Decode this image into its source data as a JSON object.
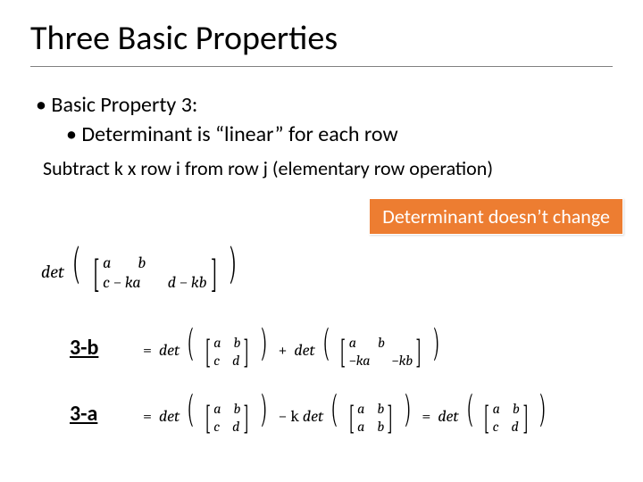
{
  "title": "Three Basic Properties",
  "bullets": {
    "level1": "Basic Property 3:",
    "level2": "Determinant is “linear” for each row"
  },
  "subtext": "Subtract k x row i from row j (elementary row operation)",
  "callout": {
    "text": "Determinant doesn’t change",
    "background_color": "#ed7d31",
    "text_color": "#ffffff"
  },
  "labels": {
    "step_b": "3-b",
    "step_a": "3-a"
  },
  "math": {
    "det_word": "det",
    "eq1": {
      "m": [
        [
          "a",
          "b"
        ],
        [
          "c − ka",
          "d − kb"
        ]
      ]
    },
    "eq_3b": {
      "lead": "=",
      "m1": [
        [
          "a",
          "b"
        ],
        [
          "c",
          "d"
        ]
      ],
      "plus": "+",
      "m2": [
        [
          "a",
          "b"
        ],
        [
          "−ka",
          "−kb"
        ]
      ]
    },
    "eq_3a": {
      "lead": "=",
      "m1": [
        [
          "a",
          "b"
        ],
        [
          "c",
          "d"
        ]
      ],
      "minus": "− k",
      "m2": [
        [
          "a",
          "b"
        ],
        [
          "a",
          "b"
        ]
      ],
      "eq": "=",
      "m3": [
        [
          "a",
          "b"
        ],
        [
          "c",
          "d"
        ]
      ]
    }
  },
  "styling": {
    "title_fontsize": 38,
    "bullet_fontsize": 24,
    "subtext_fontsize": 22,
    "callout_fontsize": 22,
    "label_fontsize": 24,
    "math_fontsize_main": 20,
    "math_fontsize_small": 18,
    "title_underline_color": "#808080",
    "text_color": "#000000",
    "background_color": "#ffffff",
    "font_family_body": "Calibri",
    "font_family_math": "Cambria Math"
  }
}
